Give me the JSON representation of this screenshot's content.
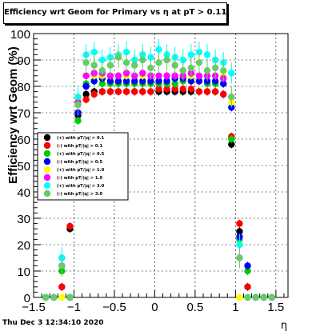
{
  "title": "Efficiency wrt Geom for Primary vs   η at pT > 0.11",
  "footer": "Thu Dec  3 12:34:10 2020",
  "chart_data": {
    "type": "scatter",
    "xlabel": "η",
    "ylabel": "Efficiency wrt Geom (%)",
    "xlim": [
      -1.5,
      1.65
    ],
    "ylim": [
      0,
      100
    ],
    "x_ticks": [
      "−1.5",
      "−1",
      "−0.5",
      "0",
      "0.5",
      "1",
      "1.5"
    ],
    "y_ticks": [
      "0",
      "10",
      "20",
      "30",
      "40",
      "50",
      "60",
      "70",
      "80",
      "90",
      "100"
    ],
    "grid": true,
    "legend_position": "left-middle",
    "series": [
      {
        "name": "(+) with pT/|q| > 0.1",
        "color": "#000000",
        "x": [
          -1.35,
          -1.25,
          -1.15,
          -1.05,
          -0.95,
          -0.85,
          -0.75,
          -0.65,
          -0.55,
          -0.45,
          -0.35,
          -0.25,
          -0.15,
          -0.05,
          0.05,
          0.15,
          0.25,
          0.35,
          0.45,
          0.55,
          0.65,
          0.75,
          0.85,
          0.95,
          1.05,
          1.15,
          1.25,
          1.35,
          1.45
        ],
        "y": [
          0,
          0,
          4,
          26,
          69,
          77,
          78,
          78,
          78,
          78,
          78,
          78,
          78,
          78,
          78,
          78,
          78,
          78,
          78,
          78,
          78,
          78,
          77,
          58,
          25,
          4,
          0,
          0,
          0
        ]
      },
      {
        "name": "(-) with pT/|q| > 0.1",
        "color": "#ff0000",
        "x": [
          -1.35,
          -1.25,
          -1.15,
          -1.05,
          -0.95,
          -0.85,
          -0.75,
          -0.65,
          -0.55,
          -0.45,
          -0.35,
          -0.25,
          -0.15,
          -0.05,
          0.05,
          0.15,
          0.25,
          0.35,
          0.45,
          0.55,
          0.65,
          0.75,
          0.85,
          0.95,
          1.05,
          1.15,
          1.25,
          1.35,
          1.45
        ],
        "y": [
          0,
          0,
          4,
          27,
          70,
          75,
          77,
          78,
          78,
          78,
          78,
          78,
          78,
          78,
          79,
          79,
          79,
          79,
          79,
          78,
          78,
          78,
          77,
          61,
          28,
          4,
          0,
          0,
          0
        ]
      },
      {
        "name": "(+) with pT/|q| > 0.5",
        "color": "#00cc00",
        "x": [
          -1.35,
          -1.25,
          -1.15,
          -1.05,
          -0.95,
          -0.85,
          -0.75,
          -0.65,
          -0.55,
          -0.45,
          -0.35,
          -0.25,
          -0.15,
          -0.05,
          0.05,
          0.15,
          0.25,
          0.35,
          0.45,
          0.55,
          0.65,
          0.75,
          0.85,
          0.95,
          1.05,
          1.15,
          1.25,
          1.35,
          1.45
        ],
        "y": [
          0,
          0,
          10,
          0,
          67,
          81,
          82,
          81,
          81,
          81,
          81,
          81,
          81,
          81,
          81,
          81,
          81,
          82,
          82,
          82,
          81,
          81,
          81,
          60,
          22,
          10,
          0,
          0,
          0
        ]
      },
      {
        "name": "(-) with pT/|q| > 0.5",
        "color": "#0000ff",
        "x": [
          -1.35,
          -1.25,
          -1.15,
          -1.05,
          -0.95,
          -0.85,
          -0.75,
          -0.65,
          -0.55,
          -0.45,
          -0.35,
          -0.25,
          -0.15,
          -0.05,
          0.05,
          0.15,
          0.25,
          0.35,
          0.45,
          0.55,
          0.65,
          0.75,
          0.85,
          0.95,
          1.05,
          1.15,
          1.25,
          1.35,
          1.45
        ],
        "y": [
          0,
          0,
          12,
          0,
          70,
          80,
          82,
          83,
          82,
          82,
          82,
          82,
          82,
          82,
          82,
          82,
          83,
          83,
          82,
          82,
          82,
          82,
          81,
          72,
          23,
          12,
          0,
          0,
          0
        ]
      },
      {
        "name": "(+) with pT/|q| > 1.0",
        "color": "#ffff00",
        "x": [
          -1.35,
          -1.25,
          -1.15,
          -1.05,
          -0.95,
          -0.85,
          -0.75,
          -0.65,
          -0.55,
          -0.45,
          -0.35,
          -0.25,
          -0.15,
          -0.05,
          0.05,
          0.15,
          0.25,
          0.35,
          0.45,
          0.55,
          0.65,
          0.75,
          0.85,
          0.95,
          1.05,
          1.15,
          1.25,
          1.35,
          1.45
        ],
        "y": [
          0,
          0,
          0,
          0,
          75,
          84,
          84,
          84,
          84,
          84,
          84,
          84,
          84,
          84,
          84,
          84,
          84,
          84,
          84,
          84,
          84,
          84,
          84,
          74,
          0,
          0,
          0,
          0,
          0
        ]
      },
      {
        "name": "(-) with pT/|q| > 1.0",
        "color": "#ff00ff",
        "x": [
          -1.35,
          -1.25,
          -1.15,
          -1.05,
          -0.95,
          -0.85,
          -0.75,
          -0.65,
          -0.55,
          -0.45,
          -0.35,
          -0.25,
          -0.15,
          -0.05,
          0.05,
          0.15,
          0.25,
          0.35,
          0.45,
          0.55,
          0.65,
          0.75,
          0.85,
          0.95,
          1.05,
          1.15,
          1.25,
          1.35,
          1.45
        ],
        "y": [
          0,
          0,
          15,
          0,
          74,
          84,
          85,
          85,
          84,
          84,
          85,
          84,
          85,
          84,
          84,
          84,
          84,
          84,
          85,
          84,
          84,
          84,
          83,
          76,
          15,
          0,
          0,
          0,
          0
        ]
      },
      {
        "name": "(+) with pT/|q| > 3.0",
        "color": "#00ffff",
        "x": [
          -1.35,
          -1.25,
          -1.15,
          -1.05,
          -0.95,
          -0.85,
          -0.75,
          -0.65,
          -0.55,
          -0.45,
          -0.35,
          -0.25,
          -0.15,
          -0.05,
          0.05,
          0.15,
          0.25,
          0.35,
          0.45,
          0.55,
          0.65,
          0.75,
          0.85,
          0.95,
          1.05,
          1.15,
          1.25,
          1.35,
          1.45
        ],
        "y": [
          0,
          0,
          15,
          0,
          76,
          92,
          93,
          90,
          91,
          92,
          93,
          90,
          92,
          91,
          94,
          92,
          91,
          90,
          92,
          93,
          92,
          90,
          89,
          85,
          20,
          0,
          0,
          0,
          0
        ]
      },
      {
        "name": "(-) with pT/|q| > 3.0",
        "color": "#66cc66",
        "x": [
          -1.35,
          -1.25,
          -1.15,
          -1.05,
          -0.95,
          -0.85,
          -0.75,
          -0.65,
          -0.55,
          -0.45,
          -0.35,
          -0.25,
          -0.15,
          -0.05,
          0.05,
          0.15,
          0.25,
          0.35,
          0.45,
          0.55,
          0.65,
          0.75,
          0.85,
          0.95,
          1.05,
          1.15,
          1.25,
          1.35,
          1.45
        ],
        "y": [
          0,
          0,
          12,
          0,
          73,
          89,
          88,
          86,
          88,
          91,
          89,
          88,
          90,
          87,
          89,
          90,
          88,
          86,
          87,
          89,
          86,
          87,
          86,
          76,
          15,
          0,
          0,
          0,
          0
        ]
      }
    ]
  }
}
